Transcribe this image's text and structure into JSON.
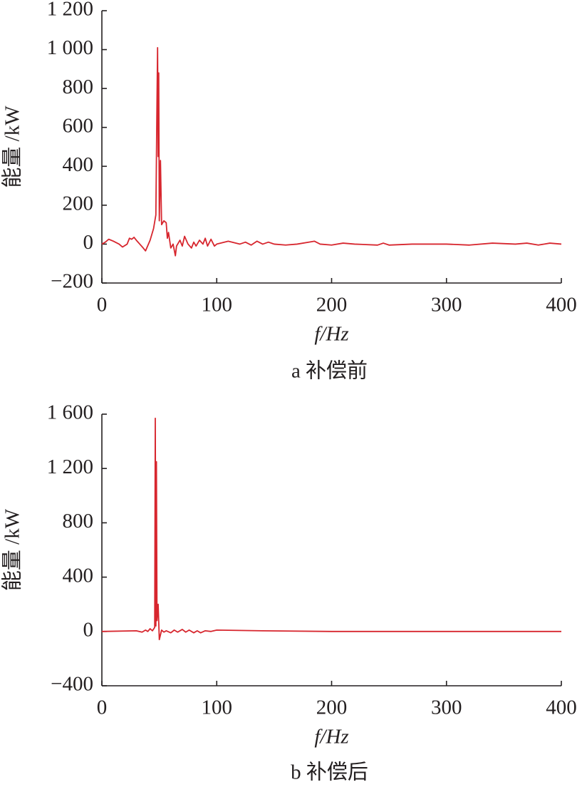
{
  "chart_data": [
    {
      "type": "line",
      "x_label": "f/Hz",
      "y_label": "能量 /kW",
      "caption": "a 补偿前",
      "xlim": [
        0,
        400
      ],
      "xticks": [
        0,
        100,
        200,
        300,
        400
      ],
      "ylim": [
        -200,
        1200
      ],
      "yticks": [
        {
          "value": -200,
          "label": "−200"
        },
        0,
        200,
        400,
        600,
        800,
        {
          "value": 1000,
          "label": "1 000"
        },
        {
          "value": 1200,
          "label": "1 200"
        }
      ],
      "series": [
        {
          "color": "#d7262e",
          "x": [
            0,
            3,
            6,
            10,
            15,
            18,
            22,
            24,
            26,
            28,
            30,
            33,
            36,
            38,
            42,
            45,
            47,
            48,
            48.5,
            49,
            49.5,
            50,
            51,
            52,
            54,
            56,
            57,
            58,
            60,
            62,
            64,
            65,
            68,
            70,
            72,
            75,
            78,
            80,
            82,
            85,
            88,
            90,
            92,
            95,
            98,
            100,
            110,
            120,
            125,
            130,
            135,
            140,
            145,
            150,
            160,
            170,
            180,
            185,
            190,
            200,
            210,
            220,
            240,
            245,
            250,
            270,
            300,
            320,
            340,
            360,
            370,
            380,
            390,
            400
          ],
          "values": [
            0,
            10,
            25,
            15,
            0,
            -15,
            0,
            30,
            25,
            35,
            20,
            0,
            -20,
            -35,
            20,
            80,
            150,
            740,
            1010,
            450,
            880,
            120,
            430,
            100,
            120,
            110,
            30,
            60,
            -20,
            0,
            -60,
            -10,
            20,
            -10,
            40,
            0,
            -20,
            10,
            -10,
            20,
            0,
            30,
            -10,
            25,
            -10,
            0,
            15,
            0,
            10,
            -5,
            15,
            0,
            10,
            0,
            -5,
            0,
            10,
            15,
            0,
            -5,
            5,
            0,
            -5,
            5,
            -5,
            0,
            0,
            -5,
            5,
            0,
            5,
            -5,
            5,
            0
          ]
        }
      ]
    },
    {
      "type": "line",
      "x_label": "f/Hz",
      "y_label": "能量 /kW",
      "caption": "b 补偿后",
      "xlim": [
        0,
        400
      ],
      "xticks": [
        0,
        100,
        200,
        300,
        400
      ],
      "ylim": [
        -400,
        1600
      ],
      "yticks": [
        {
          "value": -400,
          "label": "−400"
        },
        0,
        400,
        800,
        {
          "value": 1200,
          "label": "1 200"
        },
        {
          "value": 1600,
          "label": "1 600"
        }
      ],
      "series": [
        {
          "color": "#d7262e",
          "x": [
            0,
            30,
            35,
            38,
            40,
            42,
            44,
            46,
            46.5,
            47,
            47.5,
            48,
            49,
            50,
            52,
            54,
            56,
            60,
            63,
            66,
            70,
            73,
            76,
            80,
            83,
            86,
            90,
            95,
            100,
            140,
            200,
            300,
            400
          ],
          "values": [
            0,
            5,
            -5,
            10,
            0,
            20,
            5,
            30,
            1570,
            40,
            1250,
            80,
            200,
            -60,
            10,
            -5,
            5,
            -10,
            10,
            -5,
            15,
            -5,
            10,
            -10,
            5,
            -10,
            5,
            0,
            10,
            5,
            0,
            0,
            0
          ]
        }
      ]
    }
  ]
}
